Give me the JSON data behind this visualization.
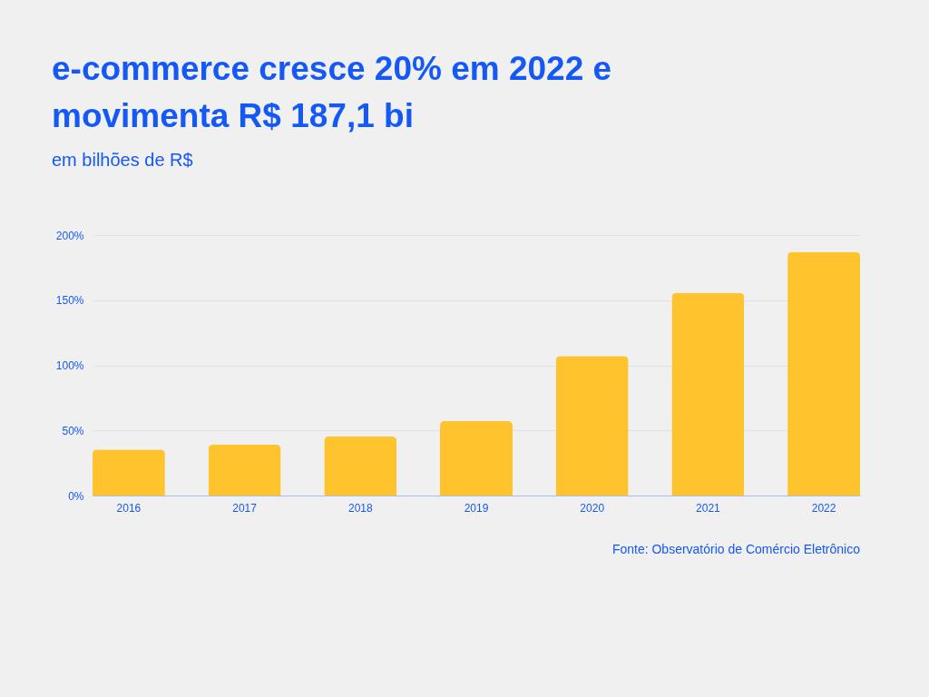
{
  "chart_data": {
    "type": "bar",
    "title": "e-commerce cresce 20% em 2022 e movimenta R$ 187,1 bi",
    "subtitle": "em bilhões de R$",
    "categories": [
      "2016",
      "2017",
      "2018",
      "2019",
      "2020",
      "2021",
      "2022"
    ],
    "values": [
      35.3,
      39.1,
      45.3,
      57.2,
      107.2,
      155.6,
      187.1
    ],
    "color": "#ffc32e",
    "ylim": [
      0,
      200
    ],
    "yticks": [
      {
        "value": 0,
        "label": "0%"
      },
      {
        "value": 50,
        "label": "50%"
      },
      {
        "value": 100,
        "label": "100%"
      },
      {
        "value": 150,
        "label": "150%"
      },
      {
        "value": 200,
        "label": "200%"
      }
    ],
    "grid": "y",
    "annotations": [
      "Fonte: Observatório de Comércio Eletrônico"
    ]
  }
}
